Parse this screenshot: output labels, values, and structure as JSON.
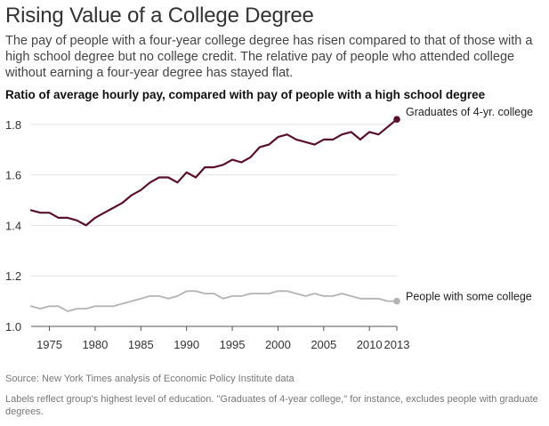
{
  "header": {
    "title": "Rising Value of a College Degree",
    "subtitle": "The pay of people with a four-year college degree has risen compared to that of those with a high school degree but no college credit. The relative pay of people who attended college without earning a four-year degree has stayed flat.",
    "chart_heading": "Ratio of average hourly pay, compared with pay of people with a high school degree"
  },
  "footer": {
    "source": "Source: New York Times analysis of Economic Policy Institute data",
    "note": "Labels reflect group's highest level of education. \"Graduates of 4-year college,\" for instance, excludes people with graduate degrees."
  },
  "chart_data": {
    "type": "line",
    "title": "Ratio of average hourly pay, compared with pay of people with a high school degree",
    "xlabel": "",
    "ylabel": "",
    "xlim": [
      1973,
      2013
    ],
    "ylim": [
      1.0,
      1.87
    ],
    "grid": true,
    "x_ticks": [
      1975,
      1980,
      1985,
      1990,
      1995,
      2000,
      2005,
      2010,
      2013
    ],
    "x_tick_labels": [
      "1975",
      "1980",
      "1985",
      "1990",
      "1995",
      "2000",
      "2005",
      "2010",
      "2013"
    ],
    "y_ticks": [
      1.0,
      1.2,
      1.4,
      1.6,
      1.8
    ],
    "y_tick_labels": [
      "1.0",
      "1.2",
      "1.4",
      "1.6",
      "1.8"
    ],
    "x": [
      1973,
      1974,
      1975,
      1976,
      1977,
      1978,
      1979,
      1980,
      1981,
      1982,
      1983,
      1984,
      1985,
      1986,
      1987,
      1988,
      1989,
      1990,
      1991,
      1992,
      1993,
      1994,
      1995,
      1996,
      1997,
      1998,
      1999,
      2000,
      2001,
      2002,
      2003,
      2004,
      2005,
      2006,
      2007,
      2008,
      2009,
      2010,
      2011,
      2012,
      2013
    ],
    "series": [
      {
        "name": "Graduates of 4-yr. college",
        "color": "#5b0f2e",
        "values": [
          1.46,
          1.45,
          1.45,
          1.43,
          1.43,
          1.42,
          1.4,
          1.43,
          1.45,
          1.47,
          1.49,
          1.52,
          1.54,
          1.57,
          1.59,
          1.59,
          1.57,
          1.61,
          1.59,
          1.63,
          1.63,
          1.64,
          1.66,
          1.65,
          1.67,
          1.71,
          1.72,
          1.75,
          1.76,
          1.74,
          1.73,
          1.72,
          1.74,
          1.74,
          1.76,
          1.77,
          1.74,
          1.77,
          1.76,
          1.79,
          1.82
        ]
      },
      {
        "name": "People with some college",
        "color": "#b3b3b3",
        "values": [
          1.08,
          1.07,
          1.08,
          1.08,
          1.06,
          1.07,
          1.07,
          1.08,
          1.08,
          1.08,
          1.09,
          1.1,
          1.11,
          1.12,
          1.12,
          1.11,
          1.12,
          1.14,
          1.14,
          1.13,
          1.13,
          1.11,
          1.12,
          1.12,
          1.13,
          1.13,
          1.13,
          1.14,
          1.14,
          1.13,
          1.12,
          1.13,
          1.12,
          1.12,
          1.13,
          1.12,
          1.11,
          1.11,
          1.11,
          1.1,
          1.1
        ]
      }
    ]
  }
}
